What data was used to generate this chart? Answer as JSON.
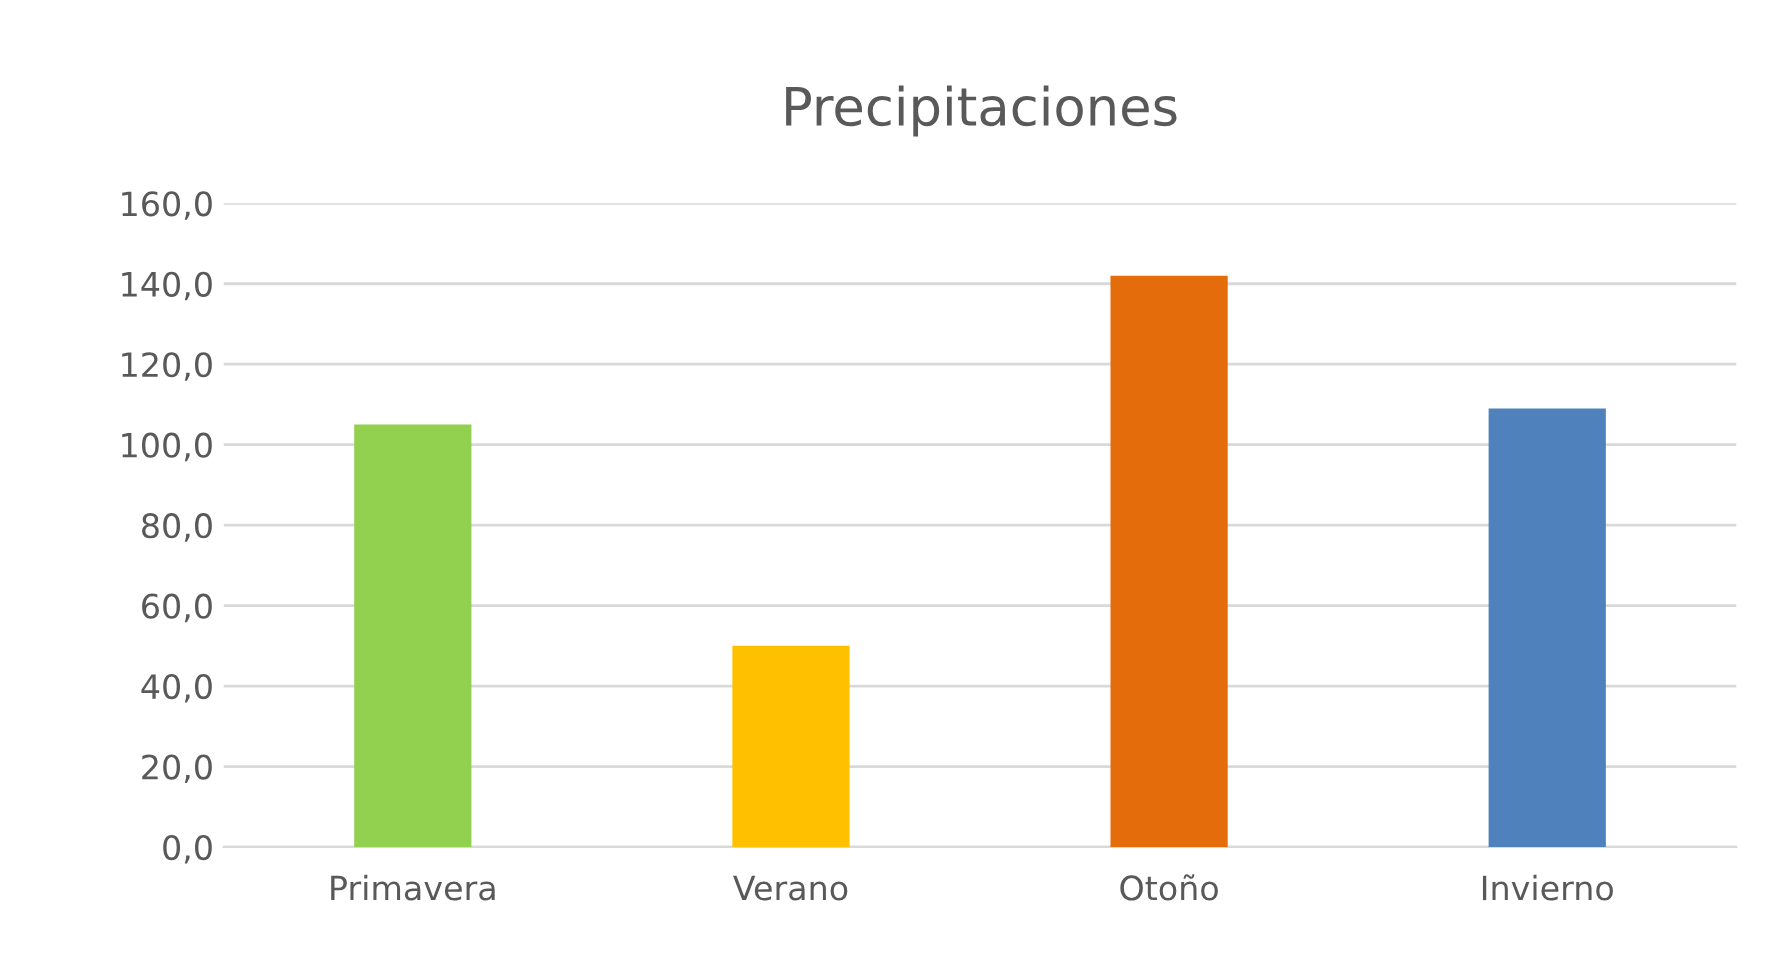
{
  "chart_data": {
    "type": "bar",
    "title": "Precipitaciones",
    "categories": [
      "Primavera",
      "Verano",
      "Otoño",
      "Invierno"
    ],
    "values": [
      105,
      50,
      142,
      109
    ],
    "colors": [
      "#92d050",
      "#ffc000",
      "#e46c0a",
      "#4f81bd"
    ],
    "ylim": [
      0,
      160
    ],
    "yticks": [
      {
        "value": 0,
        "label": "0,0"
      },
      {
        "value": 20,
        "label": "20,0"
      },
      {
        "value": 40,
        "label": "40,0"
      },
      {
        "value": 60,
        "label": "60,0"
      },
      {
        "value": 80,
        "label": "80,0"
      },
      {
        "value": 100,
        "label": "100,0"
      },
      {
        "value": 120,
        "label": "120,0"
      },
      {
        "value": 140,
        "label": "140,0"
      },
      {
        "value": 160,
        "label": "160,0"
      }
    ],
    "grid": "y",
    "legend": false
  }
}
